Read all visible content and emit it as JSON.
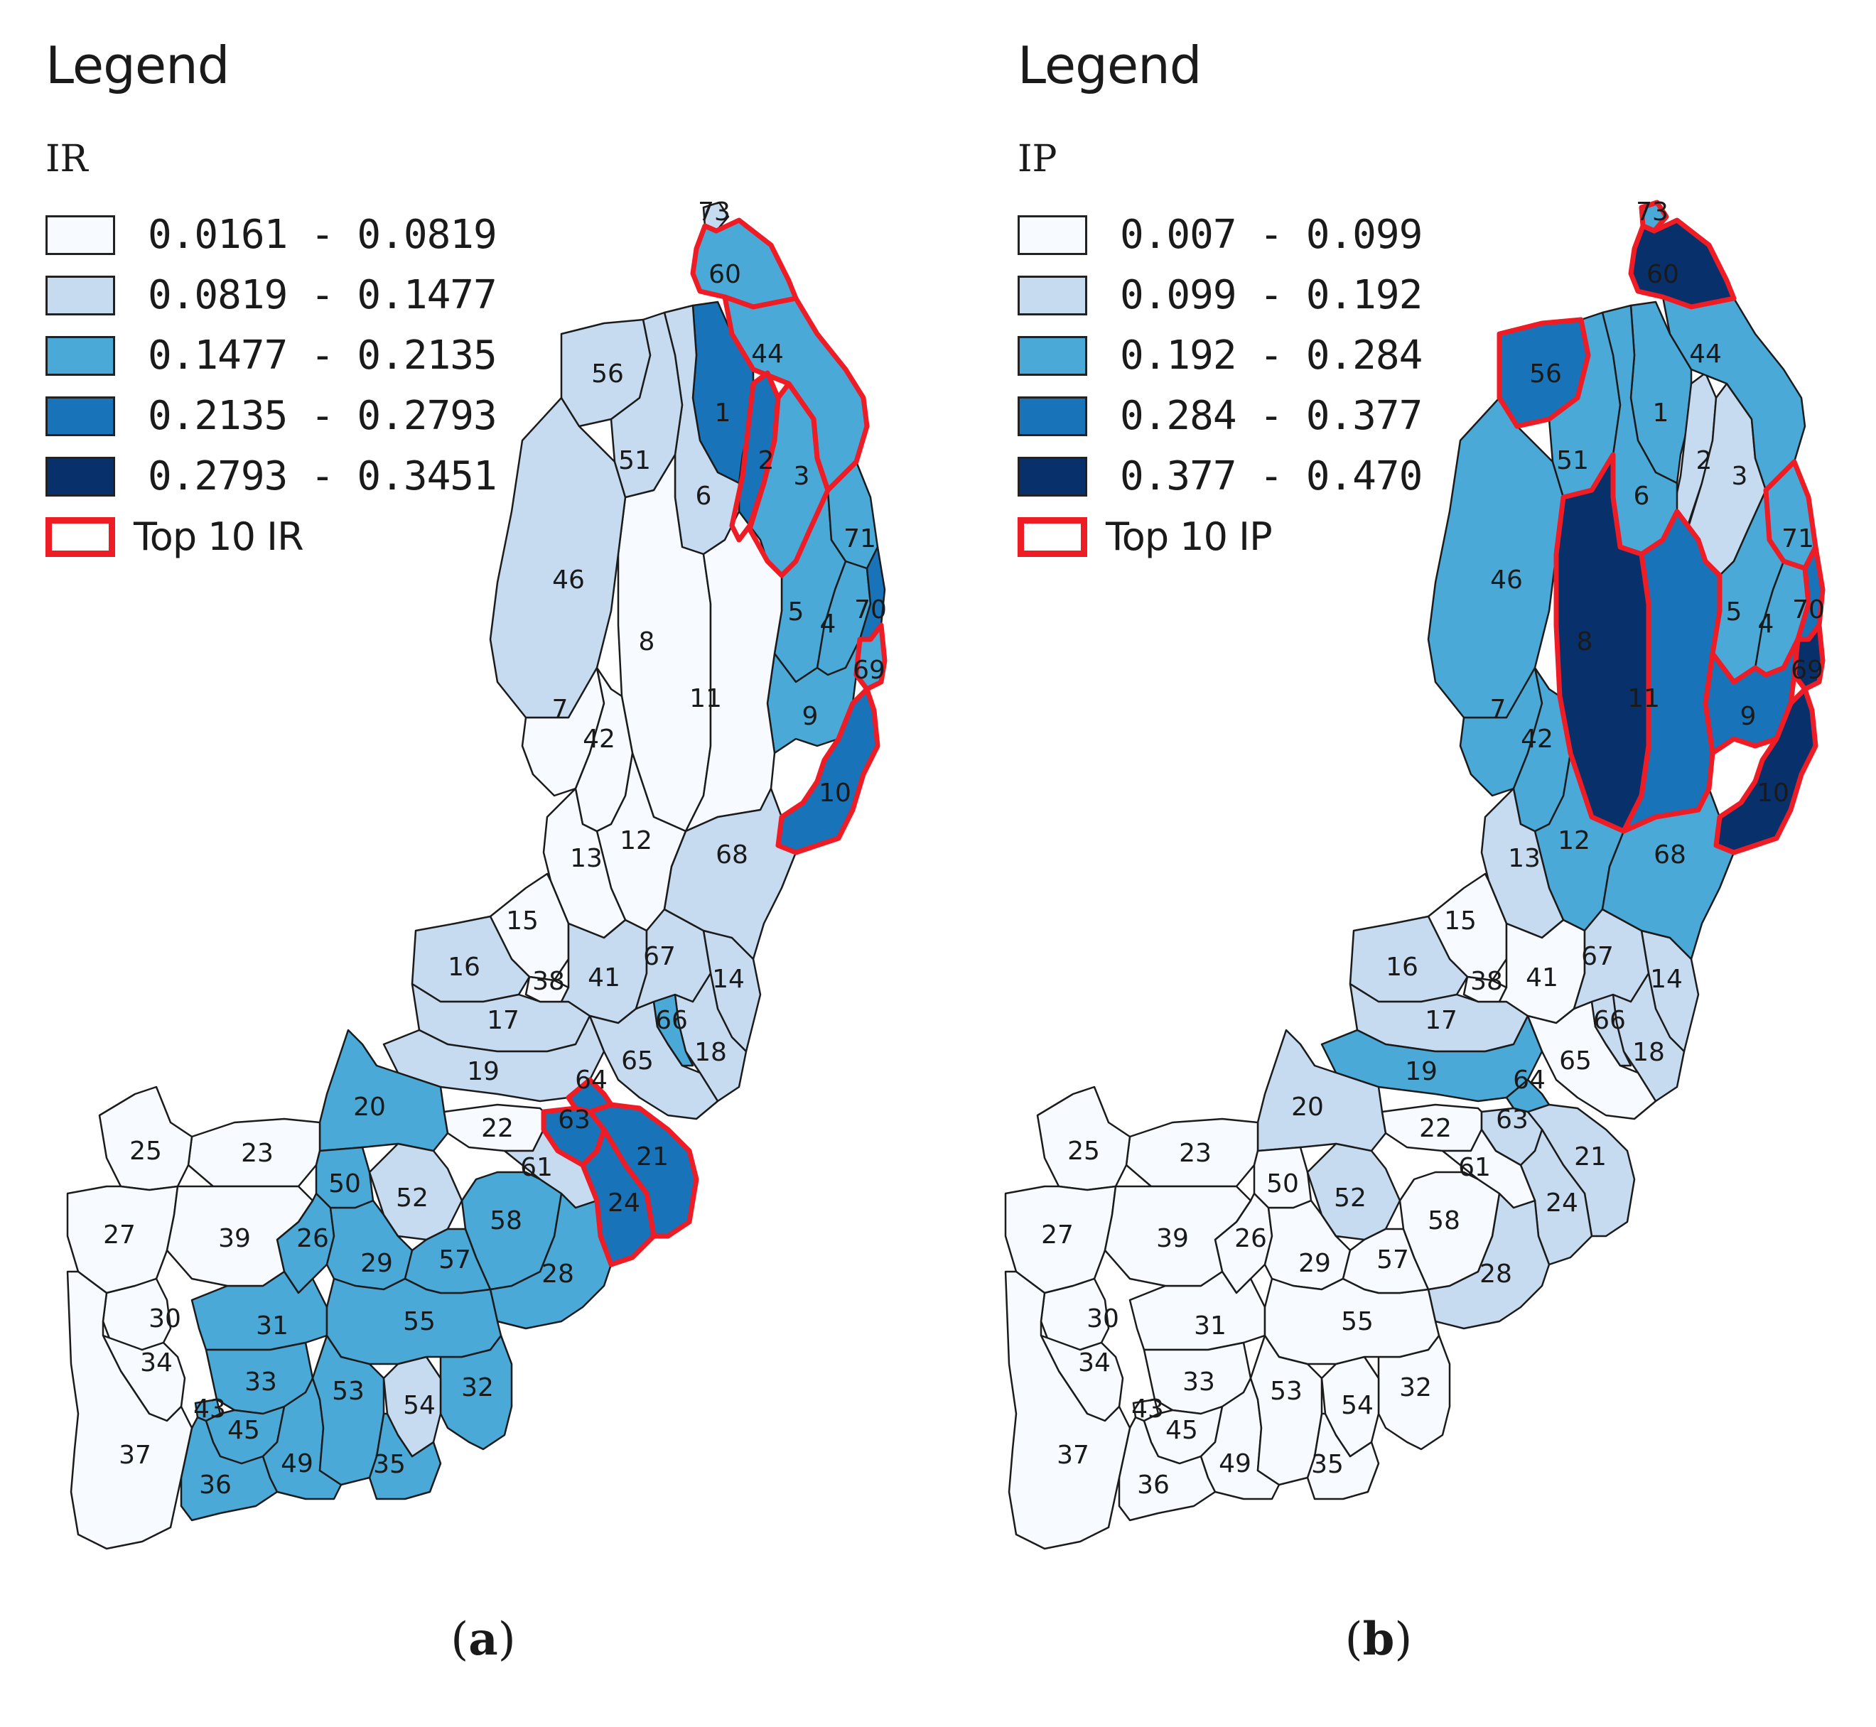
{
  "colors": {
    "class": [
      "#f7fbff",
      "#c6dbef",
      "#4aa9d6",
      "#1873b8",
      "#08306b"
    ],
    "outline": "#ee1c25"
  },
  "panels": [
    {
      "id": "a",
      "legend": {
        "title": "Legend",
        "variable": "IR",
        "classes": [
          "0.0161 - 0.0819",
          "0.0819 - 0.1477",
          "0.1477 - 0.2135",
          "0.2135 - 0.2793",
          "0.2793 - 0.3451"
        ],
        "top_label": "Top 10 IR"
      },
      "caption_open": "(",
      "caption_letter": "a",
      "caption_close": ")",
      "zones": {
        "73": 1,
        "60": 2,
        "44": 2,
        "56": 1,
        "51": 1,
        "1": 3,
        "2": 3,
        "3": 2,
        "6": 1,
        "71": 2,
        "46": 1,
        "8": 0,
        "11": 0,
        "5": 2,
        "4": 2,
        "70": 3,
        "69": 2,
        "9": 2,
        "7": 0,
        "42": 0,
        "10": 3,
        "12": 0,
        "13": 0,
        "68": 1,
        "15": 0,
        "16": 1,
        "38": 0,
        "41": 1,
        "67": 1,
        "14": 1,
        "17": 1,
        "66": 2,
        "18": 1,
        "19": 1,
        "65": 1,
        "64": 3,
        "63": 3,
        "21": 3,
        "24": 3,
        "22": 0,
        "61": 1,
        "20": 2,
        "25": 0,
        "23": 0,
        "27": 0,
        "39": 0,
        "50": 2,
        "52": 1,
        "58": 2,
        "26": 2,
        "29": 2,
        "57": 2,
        "28": 2,
        "30": 0,
        "31": 2,
        "55": 2,
        "34": 0,
        "33": 2,
        "53": 2,
        "54": 1,
        "32": 2,
        "43": 2,
        "45": 2,
        "37": 0,
        "49": 2,
        "35": 2,
        "36": 2
      },
      "top10": [
        "60",
        "44",
        "2",
        "3",
        "69",
        "10",
        "64",
        "63",
        "21",
        "24"
      ]
    },
    {
      "id": "b",
      "legend": {
        "title": "Legend",
        "variable": "IP",
        "classes": [
          "0.007 - 0.099",
          "0.099 - 0.192",
          "0.192 - 0.284",
          "0.284 - 0.377",
          "0.377 - 0.470"
        ],
        "top_label": "Top 10 IP"
      },
      "caption_open": "(",
      "caption_letter": "b",
      "caption_close": ")",
      "zones": {
        "73": 2,
        "60": 4,
        "44": 2,
        "56": 3,
        "51": 2,
        "1": 2,
        "2": 1,
        "3": 1,
        "6": 2,
        "71": 2,
        "46": 2,
        "8": 4,
        "11": 3,
        "5": 2,
        "4": 2,
        "70": 3,
        "69": 4,
        "9": 3,
        "7": 2,
        "42": 2,
        "10": 4,
        "12": 2,
        "13": 1,
        "68": 2,
        "15": 0,
        "16": 1,
        "38": 0,
        "41": 0,
        "67": 1,
        "14": 1,
        "17": 1,
        "66": 1,
        "18": 1,
        "19": 2,
        "65": 0,
        "64": 2,
        "63": 1,
        "21": 1,
        "24": 1,
        "22": 0,
        "61": 0,
        "20": 1,
        "25": 0,
        "23": 0,
        "27": 0,
        "39": 0,
        "50": 0,
        "52": 1,
        "58": 0,
        "26": 0,
        "29": 0,
        "57": 0,
        "28": 1,
        "30": 0,
        "31": 0,
        "55": 0,
        "34": 0,
        "33": 0,
        "53": 0,
        "54": 0,
        "32": 0,
        "43": 0,
        "45": 0,
        "37": 0,
        "49": 0,
        "35": 0,
        "36": 0
      },
      "top10": [
        "60",
        "56",
        "8",
        "11",
        "71",
        "70",
        "69",
        "9",
        "10",
        "73"
      ]
    }
  ]
}
